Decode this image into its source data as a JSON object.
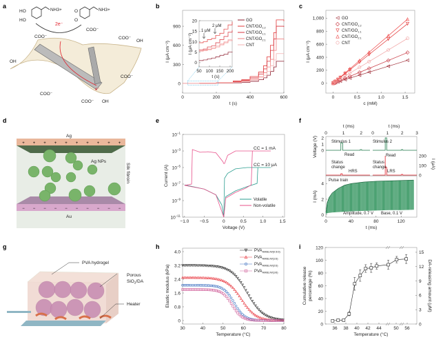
{
  "panel_labels": [
    "a",
    "b",
    "c",
    "d",
    "e",
    "f",
    "g",
    "h",
    "i"
  ],
  "illustration_a": {
    "reactant_groups": [
      "HO",
      "HO",
      "NH3+"
    ],
    "product_groups": [
      "O",
      "O",
      "NH3+"
    ],
    "electron_transfer": "2e⁻",
    "surface_groups": [
      "COO⁻",
      "COO⁻",
      "COO⁻",
      "OH",
      "OH",
      "COO⁻",
      "COO⁻",
      "COO⁻",
      "OH"
    ],
    "electron_label": "e⁻",
    "colors": {
      "graphene": "#c8b48a",
      "nanotube": "#777777",
      "electron_path": "#e0202a"
    }
  },
  "illustration_d": {
    "top_electrode": "Ag",
    "bottom_electrode": "Au",
    "particles": "Ag NPs",
    "matrix": "Silk fibroin",
    "top_sign": "+",
    "bottom_sign": "−",
    "colors": {
      "top": "#e9b79b",
      "bottom": "#d8a8cc",
      "particle": "#79b46a",
      "matrix": "#e8ede6"
    }
  },
  "illustration_g": {
    "hydrogel": "PVA hydrogel",
    "particles_line1": "Porous",
    "particles_line2_pre": "SiO",
    "particles_line2_sub": "2",
    "particles_line2_post": "/DA",
    "heater": "Heater",
    "colors": {
      "gel": "#efd8d0",
      "sphere": "#c98fb3",
      "heater": "#d8704a",
      "substrate": "#8fb6c4"
    }
  },
  "chart_data": [
    {
      "panel": "b",
      "type": "line",
      "xlabel": "t (s)",
      "ylabel": "I (μA cm⁻²)",
      "xlim": [
        0,
        600
      ],
      "ylim": [
        -150,
        1150
      ],
      "xticks": [
        0,
        200,
        400,
        600
      ],
      "yticks": [
        0,
        300,
        600,
        900
      ],
      "x": [
        0,
        100,
        200,
        300,
        350,
        400,
        450,
        480,
        500,
        520,
        540,
        555,
        600
      ],
      "series": [
        {
          "name": "GO",
          "sub": "",
          "color": "#8b1a2b",
          "values": [
            0,
            2,
            5,
            12,
            20,
            35,
            60,
            90,
            130,
            190,
            260,
            350,
            345
          ]
        },
        {
          "name": "CNT/GO",
          "sub": "1:2",
          "color": "#e23a3a",
          "values": [
            0,
            5,
            12,
            40,
            60,
            110,
            180,
            280,
            420,
            600,
            800,
            1000,
            980
          ]
        },
        {
          "name": "CNT/GO",
          "sub": "1:1",
          "color": "#d8333d",
          "values": [
            0,
            4,
            10,
            30,
            50,
            90,
            150,
            230,
            350,
            520,
            700,
            900,
            890
          ]
        },
        {
          "name": "CNT/GO",
          "sub": "2:1",
          "color": "#f08080",
          "values": [
            0,
            3,
            8,
            22,
            38,
            70,
            110,
            170,
            260,
            380,
            520,
            700,
            690
          ]
        },
        {
          "name": "CNT",
          "sub": "",
          "color": "#f4b0b0",
          "values": [
            0,
            3,
            7,
            18,
            30,
            55,
            90,
            130,
            190,
            280,
            370,
            470,
            470
          ]
        }
      ],
      "inset": {
        "xlabel": "t (s)",
        "ylabel": "I (μA cm⁻²)",
        "xlim": [
          50,
          210
        ],
        "ylim": [
          -2,
          20
        ],
        "xticks": [
          50,
          100,
          150,
          200
        ],
        "yticks": [
          0,
          5,
          10,
          15,
          20
        ],
        "annotations": [
          "1 μM",
          "2 μM"
        ],
        "x": [
          50,
          70,
          90,
          110,
          130,
          150,
          170,
          190,
          210
        ],
        "series": [
          {
            "color": "#e23a3a",
            "values": [
              9.5,
              10,
              11,
              11.5,
              13,
              14,
              16,
              18,
              19.5
            ]
          },
          {
            "color": "#d8333d",
            "values": [
              6,
              6.5,
              7.5,
              8,
              9.5,
              11,
              12.5,
              14.5,
              15.5
            ]
          },
          {
            "color": "#f4b0b0",
            "values": [
              5.5,
              6,
              6.5,
              7,
              8,
              9,
              10,
              11,
              11.5
            ]
          },
          {
            "color": "#f08080",
            "values": [
              5.5,
              5.8,
              6.2,
              6.8,
              7.5,
              8.5,
              9.5,
              10.5,
              10.8
            ]
          },
          {
            "color": "#8b1a2b",
            "values": [
              1,
              1.3,
              1.8,
              2.2,
              2.8,
              3.5,
              4,
              5,
              5.2
            ]
          }
        ]
      }
    },
    {
      "panel": "c",
      "type": "scatter",
      "xlabel": "c (mM)",
      "ylabel": "I (μA cm⁻²)",
      "xlim": [
        -0.15,
        1.7
      ],
      "ylim": [
        -150,
        1120
      ],
      "xticks": [
        0,
        0.5,
        1.0,
        1.5
      ],
      "xtick_labels": [
        "0",
        "0.5",
        "1.0",
        "1.5"
      ],
      "yticks": [
        0,
        200,
        400,
        600,
        800,
        1000
      ],
      "ytick_labels": [
        "0",
        "200",
        "400",
        "600",
        "800",
        "1,000"
      ],
      "x": [
        0,
        0.01,
        0.03,
        0.05,
        0.1,
        0.15,
        0.25,
        0.35,
        0.55,
        0.75,
        1.15,
        1.55
      ],
      "series": [
        {
          "name": "GO",
          "sub": "",
          "marker": "triangle-left",
          "color": "#a0303a",
          "slope": 228
        },
        {
          "name": "CNT/GO",
          "sub": "1:2",
          "marker": "diamond",
          "color": "#c83a44",
          "slope": 305
        },
        {
          "name": "CNT/GO",
          "sub": "1:1",
          "marker": "triangle-down",
          "color": "#e23a3a",
          "slope": 590
        },
        {
          "name": "CNT/GO",
          "sub": "2:1",
          "marker": "triangle-up",
          "color": "#ee4a4a",
          "slope": 635
        },
        {
          "name": "CNT",
          "sub": "",
          "marker": "circle",
          "color": "#f0a0a0",
          "slope": 445
        }
      ]
    },
    {
      "panel": "e",
      "type": "line",
      "xlabel": "Voltage (V)",
      "ylabel": "Current (A)",
      "yscale": "log",
      "xlim": [
        -1.05,
        1.55
      ],
      "ylim": [
        1e-11,
        0.1
      ],
      "xticks": [
        -1.0,
        -0.5,
        0,
        0.5,
        1.0,
        1.5
      ],
      "xtick_labels": [
        "−1.0",
        "−0.5",
        "0",
        "0.5",
        "1.0",
        "1.5"
      ],
      "ytick_exponents": [
        -11,
        -9,
        -7,
        -5,
        -3,
        -1
      ],
      "annotations": [
        "CC = 1 mA",
        "CC = 10 μA"
      ],
      "series": [
        {
          "name": "Volatile",
          "color": "#2a9d8f",
          "points": [
            [
              -1.0,
              8e-08
            ],
            [
              -0.5,
              2.5e-08
            ],
            [
              -0.2,
              5e-09
            ],
            [
              -0.05,
              3e-10
            ],
            [
              0,
              1e-11
            ],
            [
              0.05,
              3e-09
            ],
            [
              0.3,
              1.5e-08
            ],
            [
              0.6,
              5e-08
            ],
            [
              0.85,
              1.2e-07
            ],
            [
              0.87,
              1e-05
            ],
            [
              1.2,
              1e-05
            ],
            [
              0.6,
              1e-05
            ],
            [
              0.3,
              7e-06
            ],
            [
              0.1,
              2e-06
            ],
            [
              0.02,
              5e-07
            ],
            [
              0,
              1e-11
            ]
          ]
        },
        {
          "name": "Non-volatile",
          "color": "#e8508a",
          "points": [
            [
              0,
              1e-11
            ],
            [
              0.05,
              2e-09
            ],
            [
              0.3,
              1e-08
            ],
            [
              0.55,
              3e-08
            ],
            [
              0.7,
              8e-08
            ],
            [
              0.73,
              0.001
            ],
            [
              1.2,
              0.001
            ],
            [
              0.3,
              0.001
            ],
            [
              0.1,
              0.0003
            ],
            [
              0.02,
              3e-05
            ],
            [
              0,
              3e-05
            ],
            [
              -0.02,
              5e-05
            ],
            [
              -0.2,
              0.0006
            ],
            [
              -0.4,
              0.0008
            ],
            [
              -0.6,
              0.0007
            ],
            [
              -0.8,
              0.0015
            ],
            [
              -0.82,
              1e-07
            ],
            [
              -1.0,
              7e-08
            ],
            [
              -0.5,
              2.5e-08
            ],
            [
              -0.2,
              5e-09
            ],
            [
              0,
              1e-11
            ]
          ]
        }
      ]
    },
    {
      "panel": "f",
      "type": "line",
      "top": {
        "xlabel": "t (ms)",
        "xticks_left": [
          0,
          1,
          2
        ],
        "xticks_right": [
          0,
          1,
          2,
          3
        ],
        "ylabel_left": "Voltage (V)",
        "ylabel_right": "I (μA)",
        "yticks_left": [
          0,
          1,
          2
        ],
        "yticks_right": [
          0,
          100,
          200
        ],
        "annotations": [
          "Stimulus 1",
          "Read",
          "Status change",
          "HRS",
          "Stimulus 2",
          "Read",
          "Status change",
          "LRS"
        ],
        "pulse_amplitude_v": 1.2,
        "stimulus2_amplitude_v": 2,
        "lrs_peak_ua": 200,
        "voltage_color": "#1f7a4a",
        "current_color": "#e0202a"
      },
      "bottom": {
        "xlabel": "t (ms)",
        "ylabel": "I (mA)",
        "xlim": [
          0,
          145
        ],
        "ylim": [
          -0.3,
          5
        ],
        "xticks": [
          0,
          40,
          80,
          120
        ],
        "yticks": [
          0,
          2,
          4
        ],
        "annotations": [
          "Pulse train",
          "Amplitude, 0.7 V",
          "Base, 0.1 V"
        ],
        "envelope_t": [
          0,
          2,
          5,
          10,
          20,
          30,
          40,
          60,
          80,
          100,
          120,
          140
        ],
        "envelope_peak": [
          0.3,
          1.5,
          2.2,
          2.8,
          3.4,
          3.8,
          4.0,
          4.2,
          4.3,
          4.35,
          4.4,
          4.45
        ],
        "envelope_base": [
          0.1,
          0.2,
          0.25,
          0.3,
          0.35,
          0.4,
          0.45,
          0.5,
          0.55,
          0.6,
          0.6,
          0.65
        ],
        "color": "#1f8a4f"
      }
    },
    {
      "panel": "h",
      "type": "scatter",
      "xlabel": "Temperature (°C)",
      "ylabel": "Elastic modulus (kPa)",
      "xlim": [
        30,
        80
      ],
      "ylim": [
        -0.2,
        4.2
      ],
      "xticks": [
        30,
        40,
        50,
        60,
        70,
        80
      ],
      "yticks": [
        0,
        0.8,
        1.6,
        2.4,
        3.2,
        4.0
      ],
      "ytick_labels": [
        "0",
        "0.8",
        "1.6",
        "2.4",
        "3.2",
        "4.0"
      ],
      "series": [
        {
          "name": "PVA",
          "sub": "HMBL/W(0.5/3)",
          "marker": "triangle-down",
          "color": "#222222",
          "plateau": 3.2,
          "midpoint": 62,
          "width": 4.0
        },
        {
          "name": "PVA",
          "sub": "HMBL/W(1/3)",
          "marker": "triangle-up",
          "color": "#e8323a",
          "plateau": 2.5,
          "midpoint": 59,
          "width": 3.6
        },
        {
          "name": "PVA",
          "sub": "HMBL/W(2/3)",
          "marker": "circle",
          "color": "#3a6fc0",
          "plateau": 2.05,
          "midpoint": 55.5,
          "width": 2.6
        },
        {
          "name": "PVA",
          "sub": "HMBL/W(1/6)",
          "marker": "square",
          "color": "#d0609a",
          "plateau": 1.8,
          "midpoint": 54.5,
          "width": 2.4
        }
      ]
    },
    {
      "panel": "i",
      "type": "scatter",
      "xlabel": "Temperature (°C)",
      "ylabel_left_line1": "Cumulative release",
      "ylabel_left_line2": "percentage (%)",
      "ylabel_right": "DA-releasing amount (μM)",
      "ylim": [
        0,
        120
      ],
      "yticks": [
        0,
        20,
        40,
        60,
        80,
        100,
        120
      ],
      "ylim_right": [
        0,
        16
      ],
      "yticks_right": [
        0,
        3,
        6,
        9,
        12,
        15
      ],
      "xticks": [
        36,
        38,
        40,
        42,
        44,
        50,
        56
      ],
      "axis_breaks": true,
      "points": [
        {
          "x": 35.6,
          "y": 5,
          "err": 1.5
        },
        {
          "x": 36.6,
          "y": 6,
          "err": 1.5
        },
        {
          "x": 37.6,
          "y": 6,
          "err": 1.5
        },
        {
          "x": 38.6,
          "y": 16,
          "err": 3
        },
        {
          "x": 39.6,
          "y": 63,
          "err": 10
        },
        {
          "x": 40.6,
          "y": 76,
          "err": 9
        },
        {
          "x": 41.6,
          "y": 87,
          "err": 6
        },
        {
          "x": 42.6,
          "y": 88,
          "err": 7
        },
        {
          "x": 43.6,
          "y": 91,
          "err": 5
        },
        {
          "x": 47,
          "y": 93,
          "err": 7
        },
        {
          "x": 50.3,
          "y": 101,
          "err": 5
        },
        {
          "x": 55.5,
          "y": 102,
          "err": 7
        }
      ],
      "color": "#222222"
    }
  ]
}
